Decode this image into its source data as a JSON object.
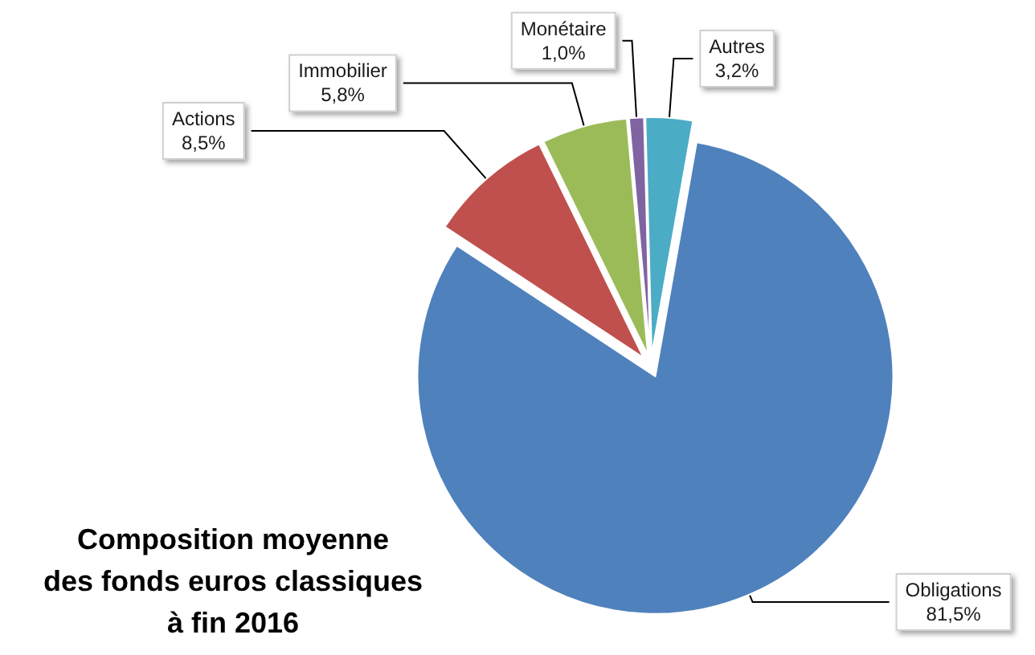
{
  "chart_data": {
    "type": "pie",
    "title": "Composition moyenne\ndes fonds euros classiques\nà fin 2016",
    "categories": [
      "Obligations",
      "Actions",
      "Immobilier",
      "Monétaire",
      "Autres"
    ],
    "values": [
      81.5,
      8.5,
      5.8,
      1.0,
      3.2
    ],
    "value_labels": [
      "81,5%",
      "8,5%",
      "5,8%",
      "1,0%",
      "3,2%"
    ],
    "colors": [
      "#4f81bd",
      "#c0504d",
      "#9bbb59",
      "#8064a2",
      "#4bacc6"
    ]
  }
}
